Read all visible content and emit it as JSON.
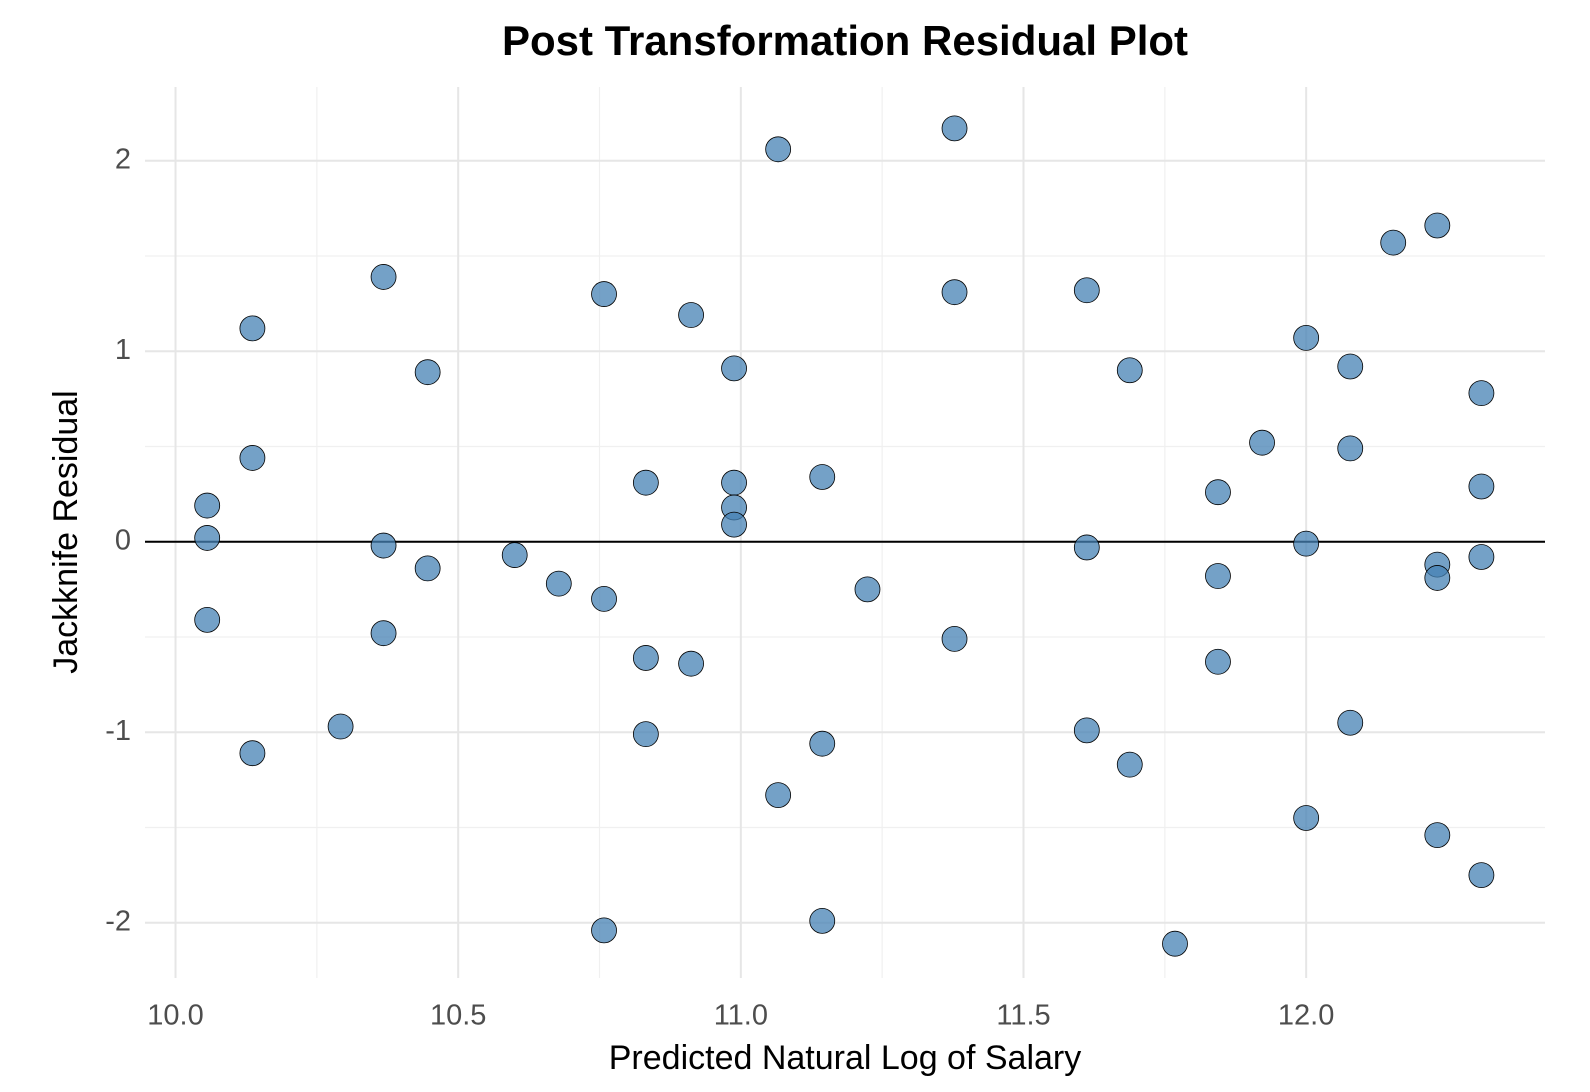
{
  "chart_data": {
    "type": "scatter",
    "title": "Post Transformation Residual Plot",
    "x_label": "Predicted Natural Log of Salary",
    "y_label": "Jackknife Residual",
    "x": [
      10.056,
      10.056,
      10.056,
      10.136,
      10.136,
      10.136,
      10.292,
      10.368,
      10.368,
      10.368,
      10.446,
      10.446,
      10.6,
      10.678,
      10.758,
      10.758,
      10.758,
      10.832,
      10.832,
      10.832,
      10.912,
      10.912,
      10.988,
      10.988,
      10.988,
      10.988,
      11.066,
      11.066,
      11.144,
      11.144,
      11.144,
      11.224,
      11.378,
      11.378,
      11.378,
      11.612,
      11.612,
      11.612,
      11.688,
      11.688,
      11.768,
      11.844,
      11.844,
      11.844,
      11.922,
      12.0,
      12.0,
      12.0,
      12.078,
      12.078,
      12.078,
      12.154,
      12.232,
      12.232,
      12.232,
      12.232,
      12.31,
      12.31,
      12.31,
      12.31
    ],
    "values": [
      0.19,
      0.02,
      -0.41,
      1.12,
      0.44,
      -1.11,
      -0.97,
      1.39,
      -0.02,
      -0.48,
      0.89,
      -0.14,
      -0.07,
      -0.22,
      1.3,
      -0.3,
      -2.04,
      0.31,
      -0.61,
      -1.01,
      1.19,
      -0.64,
      0.91,
      0.31,
      0.18,
      0.09,
      2.06,
      -1.33,
      0.34,
      -1.06,
      -1.99,
      -0.25,
      2.17,
      1.31,
      -0.51,
      1.32,
      -0.03,
      -0.99,
      0.9,
      -1.17,
      -2.11,
      0.26,
      -0.18,
      -0.63,
      0.52,
      1.07,
      -0.01,
      -1.45,
      0.92,
      0.49,
      -0.95,
      1.57,
      1.66,
      -0.12,
      -0.19,
      -1.54,
      0.78,
      0.29,
      -0.08,
      -1.75
    ],
    "color": "#4682b4",
    "xlim": [
      9.946,
      12.4225
    ],
    "ylim": [
      -2.29,
      2.387
    ],
    "xticks": [
      {
        "value": 10,
        "label": "10.0"
      },
      10.5,
      {
        "value": 11,
        "label": "11.0"
      },
      11.5,
      {
        "value": 12,
        "label": "12.0"
      }
    ],
    "yticks": [
      -2,
      -1,
      0,
      1,
      2
    ],
    "grid": true,
    "minor_grid": true,
    "hline": 0
  }
}
